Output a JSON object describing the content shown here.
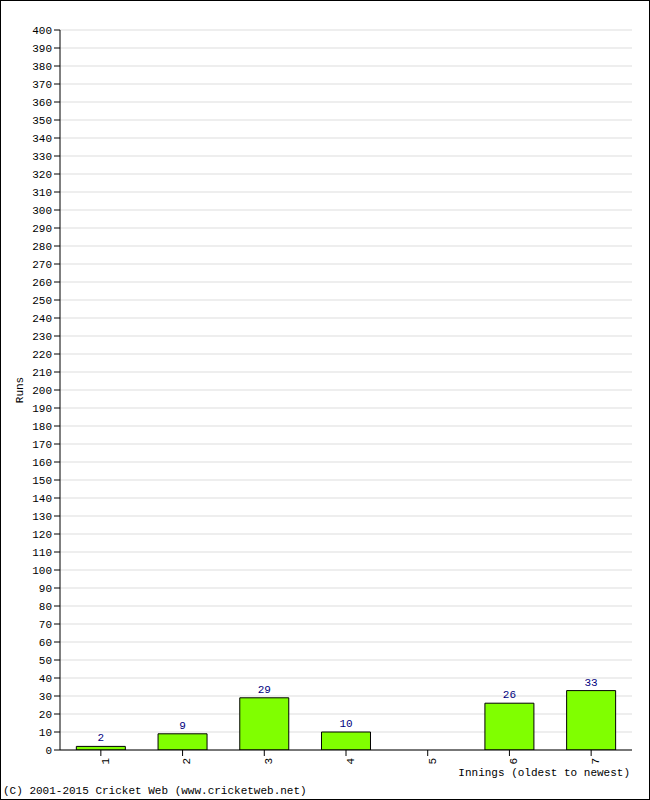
{
  "chart_data": {
    "type": "bar",
    "x_label": "Innings (oldest to newest)",
    "y_label": "Runs",
    "annotations": [
      "(C) 2001-2015 Cricket Web (www.cricketweb.net)"
    ],
    "categories": [
      "1",
      "2",
      "3",
      "4",
      "5",
      "6",
      "7"
    ],
    "values": [
      2,
      9,
      29,
      10,
      0,
      26,
      33
    ],
    "color": "#80ff00",
    "ylim": [
      0,
      400
    ],
    "yticks": [
      0,
      10,
      20,
      30,
      40,
      50,
      60,
      70,
      80,
      90,
      100,
      110,
      120,
      130,
      140,
      150,
      160,
      170,
      180,
      190,
      200,
      210,
      220,
      230,
      240,
      250,
      260,
      270,
      280,
      290,
      300,
      310,
      320,
      330,
      340,
      350,
      360,
      370,
      380,
      390,
      400
    ],
    "grid": true,
    "data_labels": true
  }
}
